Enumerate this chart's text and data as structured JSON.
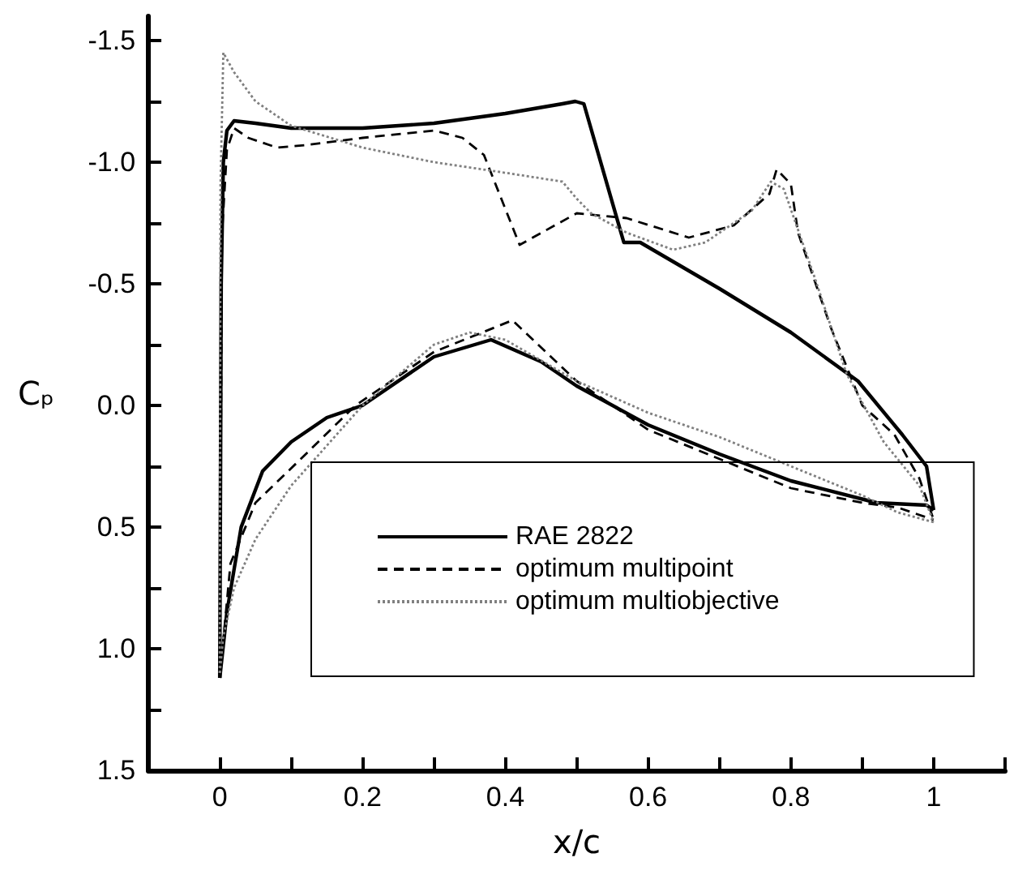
{
  "chart_data": {
    "type": "line",
    "xlabel": "x/c",
    "ylabel": "Cₚ",
    "xlim": [
      -0.1,
      1.1
    ],
    "ylim": [
      1.5,
      -1.6
    ],
    "xticks": [
      {
        "value": 0,
        "label": "0"
      },
      {
        "value": 0.1,
        "label": null
      },
      0.2,
      {
        "value": 0.3,
        "label": null
      },
      0.4,
      {
        "value": 0.5,
        "label": null
      },
      0.6,
      {
        "value": 0.7,
        "label": null
      },
      0.8,
      {
        "value": 0.9,
        "label": null
      },
      {
        "value": 1,
        "label": "1"
      },
      {
        "value": 1.1,
        "label": null
      }
    ],
    "yticks": [
      {
        "value": -1.5,
        "label": "-1.5"
      },
      {
        "value": -1.25,
        "label": null
      },
      {
        "value": -1,
        "label": "-1.0"
      },
      {
        "value": -0.75,
        "label": null
      },
      {
        "value": -0.5,
        "label": "-0.5"
      },
      {
        "value": -0.25,
        "label": null
      },
      {
        "value": 0,
        "label": "0.0"
      },
      {
        "value": 0.25,
        "label": null
      },
      {
        "value": 0.5,
        "label": "0.5"
      },
      {
        "value": 0.75,
        "label": null
      },
      {
        "value": 1,
        "label": "1.0"
      },
      {
        "value": 1.25,
        "label": null
      },
      {
        "value": 1.5,
        "label": "1.5"
      }
    ],
    "grid": false,
    "legend": "bottom",
    "marker": "none",
    "tick_labels": "xy",
    "series": [
      {
        "name": "RAE 2822",
        "color": "#000000",
        "line_style": "solid",
        "x": [
          0,
          0.002,
          0.005,
          0.01,
          0.02,
          0.05,
          0.1,
          0.2,
          0.3,
          0.4,
          0.48,
          0.498,
          0.51,
          0.566,
          0.589,
          0.7,
          0.8,
          0.894,
          0.956,
          0.99,
          1
        ],
        "values": [
          1.12,
          -0.5,
          -1.0,
          -1.13,
          -1.17,
          -1.16,
          -1.14,
          -1.14,
          -1.16,
          -1.2,
          -1.24,
          -1.25,
          -1.24,
          -0.67,
          -0.67,
          -0.48,
          -0.3,
          -0.1,
          0.12,
          0.25,
          0.43
        ]
      },
      {
        "color": "#000000",
        "line_style": "solid",
        "x": [
          0,
          0.01,
          0.03,
          0.06,
          0.1,
          0.15,
          0.2,
          0.3,
          0.38,
          0.45,
          0.5,
          0.6,
          0.7,
          0.8,
          0.92,
          0.99,
          1
        ],
        "values": [
          1.12,
          0.85,
          0.5,
          0.27,
          0.15,
          0.05,
          0.0,
          -0.2,
          -0.27,
          -0.18,
          -0.08,
          0.08,
          0.2,
          0.31,
          0.4,
          0.41,
          0.43
        ]
      },
      {
        "name": "optimum multipoint",
        "color": "#000000",
        "line_style": "dashed",
        "x": [
          0,
          0.003,
          0.01,
          0.02,
          0.04,
          0.08,
          0.12,
          0.2,
          0.3,
          0.34,
          0.37,
          0.42,
          0.5,
          0.57,
          0.657,
          0.72,
          0.77,
          0.78,
          0.8,
          0.81,
          0.856,
          0.9,
          0.945,
          0.98,
          1
        ],
        "values": [
          1.12,
          -0.7,
          -1.05,
          -1.14,
          -1.1,
          -1.06,
          -1.07,
          -1.1,
          -1.13,
          -1.1,
          -1.03,
          -0.66,
          -0.79,
          -0.77,
          -0.69,
          -0.74,
          -0.87,
          -0.97,
          -0.91,
          -0.71,
          -0.32,
          0.0,
          0.12,
          0.3,
          0.47
        ]
      },
      {
        "color": "#000000",
        "line_style": "dashed",
        "x": [
          0,
          0.015,
          0.05,
          0.11,
          0.19,
          0.3,
          0.41,
          0.5,
          0.6,
          0.8,
          0.9,
          0.95,
          1
        ],
        "values": [
          1.12,
          0.65,
          0.4,
          0.23,
          0.0,
          -0.22,
          -0.35,
          -0.1,
          0.1,
          0.34,
          0.4,
          0.42,
          0.47
        ]
      },
      {
        "name": "optimum multiobjective",
        "color": "#808080",
        "line_style": "dotted",
        "x": [
          0,
          0.001,
          0.005,
          0.02,
          0.05,
          0.1,
          0.2,
          0.3,
          0.392,
          0.48,
          0.5,
          0.52,
          0.57,
          0.635,
          0.68,
          0.745,
          0.772,
          0.79,
          0.834,
          0.878,
          0.93,
          0.98,
          1
        ],
        "values": [
          1.1,
          -0.9,
          -1.45,
          -1.37,
          -1.25,
          -1.15,
          -1.06,
          -1.0,
          -0.96,
          -0.92,
          -0.85,
          -0.79,
          -0.71,
          -0.64,
          -0.67,
          -0.8,
          -0.92,
          -0.89,
          -0.52,
          -0.13,
          0.15,
          0.33,
          0.48
        ]
      },
      {
        "color": "#808080",
        "line_style": "dotted",
        "x": [
          0,
          0.005,
          0.02,
          0.05,
          0.1,
          0.2,
          0.3,
          0.35,
          0.4,
          0.5,
          0.6,
          0.7,
          0.8,
          0.9,
          0.95,
          1
        ],
        "values": [
          1.1,
          0.95,
          0.75,
          0.55,
          0.33,
          0.0,
          -0.25,
          -0.3,
          -0.27,
          -0.1,
          0.03,
          0.13,
          0.25,
          0.37,
          0.44,
          0.48
        ]
      }
    ]
  }
}
